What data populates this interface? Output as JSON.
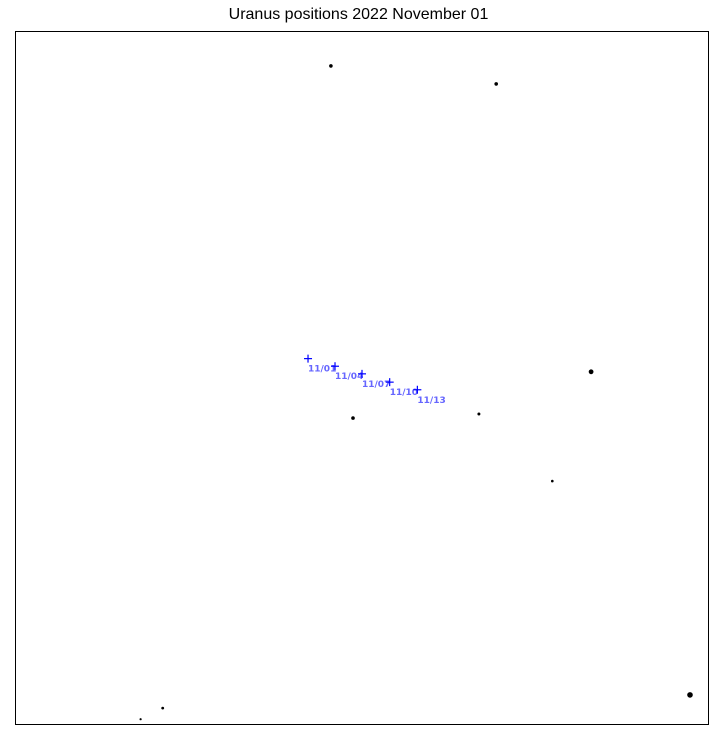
{
  "chart_data": {
    "type": "scatter",
    "title": "Uranus positions 2022 November 01",
    "xlabel": "",
    "ylabel": "",
    "xlim": [
      0,
      100
    ],
    "ylim": [
      0,
      100
    ],
    "grid": false,
    "axes_ticks": false,
    "colors": {
      "track": "#0000ff",
      "track_label": "#6666ff",
      "stars": "#000000",
      "frame": "#000000"
    },
    "series": [
      {
        "marker": "plus",
        "color": "#0000ff",
        "points": [
          {
            "x": 42.2,
            "y": 52.8,
            "label": "11/01"
          },
          {
            "x": 46.1,
            "y": 51.7,
            "label": "11/04"
          },
          {
            "x": 50.0,
            "y": 50.6,
            "label": "11/07"
          },
          {
            "x": 54.0,
            "y": 49.4,
            "label": "11/10"
          },
          {
            "x": 58.0,
            "y": 48.3,
            "label": "11/13"
          }
        ]
      },
      {
        "marker": "dot",
        "color": "#000000",
        "points": [
          {
            "x": 45.5,
            "y": 95.1,
            "size": 1.8
          },
          {
            "x": 69.4,
            "y": 92.5,
            "size": 1.8
          },
          {
            "x": 83.1,
            "y": 50.9,
            "size": 2.4
          },
          {
            "x": 48.7,
            "y": 44.2,
            "size": 1.8
          },
          {
            "x": 66.9,
            "y": 44.8,
            "size": 1.5
          },
          {
            "x": 77.5,
            "y": 35.1,
            "size": 1.3
          },
          {
            "x": 21.2,
            "y": 2.3,
            "size": 1.4
          },
          {
            "x": 18.0,
            "y": 0.7,
            "size": 1.1
          },
          {
            "x": 97.4,
            "y": 4.2,
            "size": 2.8
          }
        ]
      }
    ]
  }
}
